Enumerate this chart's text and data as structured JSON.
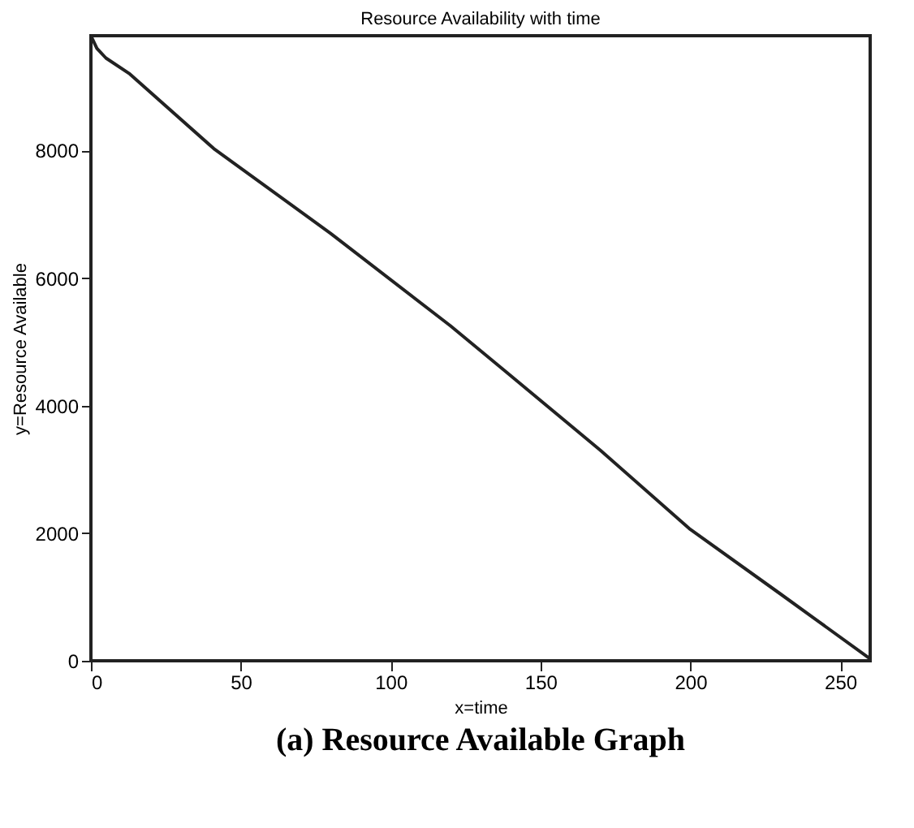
{
  "chart_data": {
    "type": "line",
    "title": "Resource Availability with time",
    "xlabel": "x=time",
    "ylabel": "y=Resource Available",
    "x": [
      0,
      2,
      5,
      13,
      41,
      80,
      120,
      138,
      170,
      200,
      230,
      260
    ],
    "series": [
      {
        "color": "#222222",
        "values": [
          9800,
          9600,
          9450,
          9200,
          8030,
          6700,
          5250,
          4550,
          3300,
          2060,
          1050,
          30
        ]
      }
    ],
    "xlim": [
      0,
      260
    ],
    "ylim": [
      0,
      9800
    ],
    "xticks": [
      0,
      50,
      100,
      150,
      200,
      250
    ],
    "yticks": [
      0,
      2000,
      4000,
      6000,
      8000
    ],
    "grid": false,
    "marker": "none",
    "line_style": "solid",
    "annotations": [
      "(a) Resource Available Graph"
    ]
  }
}
